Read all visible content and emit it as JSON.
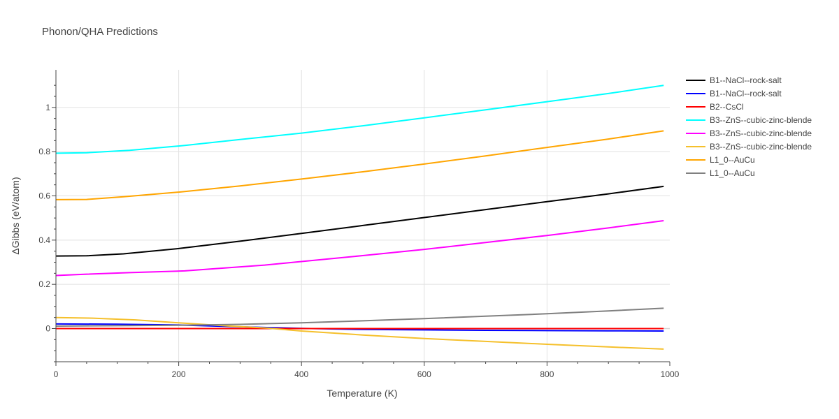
{
  "chart_data": {
    "type": "line",
    "title": "Phonon/QHA Predictions",
    "xlabel": "Temperature (K)",
    "ylabel": "ΔGibbs (eV/atom)",
    "xlim": [
      0,
      1000
    ],
    "ylim": [
      -0.15,
      1.17
    ],
    "xticks": [
      0,
      200,
      400,
      600,
      800,
      1000
    ],
    "yticks": [
      0,
      0.2,
      0.4,
      0.6,
      0.8,
      1
    ],
    "x_tick_labels": [
      "0",
      "200",
      "400",
      "600",
      "800",
      "1000"
    ],
    "y_tick_labels": [
      "0",
      "0.2",
      "0.4",
      "0.6",
      "0.8",
      "1"
    ],
    "grid": true,
    "legend_position": "right",
    "series": [
      {
        "name": "B1--NaCl--rock-salt",
        "color": "#000000",
        "x": [
          0,
          50,
          110,
          200,
          300,
          400,
          500,
          600,
          700,
          800,
          900,
          990
        ],
        "y": [
          0.328,
          0.329,
          0.338,
          0.362,
          0.395,
          0.43,
          0.466,
          0.502,
          0.538,
          0.574,
          0.609,
          0.643
        ]
      },
      {
        "name": "B1--NaCl--rock-salt",
        "color": "#0000ff",
        "x": [
          0,
          100,
          200,
          300,
          400,
          500,
          600,
          700,
          800,
          900,
          990
        ],
        "y": [
          0.021,
          0.02,
          0.016,
          0.008,
          0.001,
          -0.004,
          -0.006,
          -0.008,
          -0.009,
          -0.01,
          -0.011
        ]
      },
      {
        "name": "B2--CsCl",
        "color": "#ff0000",
        "x": [
          0,
          200,
          400,
          600,
          800,
          990
        ],
        "y": [
          0.0,
          0.0,
          0.0,
          0.0,
          0.0,
          0.0
        ]
      },
      {
        "name": "B3--ZnS--cubic-zinc-blende",
        "color": "#00ffff",
        "x": [
          0,
          50,
          120,
          210,
          300,
          400,
          500,
          600,
          700,
          800,
          900,
          990
        ],
        "y": [
          0.793,
          0.795,
          0.806,
          0.828,
          0.855,
          0.884,
          0.917,
          0.953,
          0.989,
          1.026,
          1.063,
          1.1
        ]
      },
      {
        "name": "B3--ZnS--cubic-zinc-blende",
        "color": "#ff00ff",
        "x": [
          0,
          50,
          120,
          210,
          340,
          400,
          500,
          600,
          700,
          800,
          900,
          990
        ],
        "y": [
          0.24,
          0.246,
          0.253,
          0.261,
          0.287,
          0.303,
          0.33,
          0.358,
          0.389,
          0.421,
          0.455,
          0.488
        ]
      },
      {
        "name": "B3--ZnS--cubic-zinc-blende",
        "color": "#f5c02c",
        "x": [
          0,
          60,
          130,
          200,
          280,
          340,
          400,
          500,
          600,
          700,
          800,
          900,
          990
        ],
        "y": [
          0.05,
          0.047,
          0.039,
          0.026,
          0.012,
          0.003,
          -0.011,
          -0.029,
          -0.045,
          -0.058,
          -0.071,
          -0.083,
          -0.093
        ]
      },
      {
        "name": "L1_0--AuCu",
        "color": "#ffa500",
        "x": [
          0,
          50,
          110,
          200,
          300,
          400,
          500,
          600,
          700,
          800,
          900,
          990
        ],
        "y": [
          0.583,
          0.584,
          0.596,
          0.617,
          0.645,
          0.676,
          0.709,
          0.744,
          0.781,
          0.819,
          0.857,
          0.894
        ]
      },
      {
        "name": "L1_0--AuCu",
        "color": "#808080",
        "x": [
          0,
          100,
          200,
          300,
          400,
          500,
          600,
          700,
          800,
          900,
          990
        ],
        "y": [
          0.011,
          0.013,
          0.015,
          0.019,
          0.026,
          0.035,
          0.045,
          0.056,
          0.067,
          0.08,
          0.092
        ]
      }
    ]
  }
}
